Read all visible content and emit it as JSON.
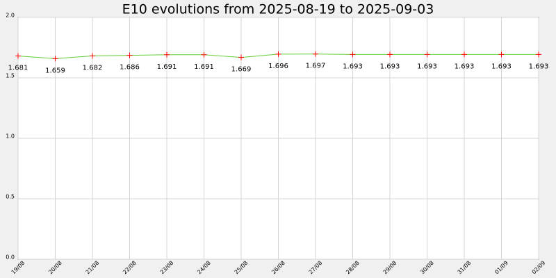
{
  "chart_data": {
    "type": "line",
    "title": "E10 evolutions from 2025-08-19 to 2025-09-03",
    "categories": [
      "19/08",
      "20/08",
      "21/08",
      "22/08",
      "23/08",
      "24/08",
      "25/08",
      "26/08",
      "27/08",
      "28/08",
      "29/08",
      "30/08",
      "31/08",
      "01/09",
      "02/09"
    ],
    "series": [
      {
        "name": "E10",
        "color": "#66cc33",
        "marker_color": "#ff0000",
        "values": [
          1.681,
          1.659,
          1.682,
          1.686,
          1.691,
          1.691,
          1.669,
          1.696,
          1.697,
          1.693,
          1.693,
          1.693,
          1.693,
          1.693,
          1.693
        ]
      }
    ],
    "ylim": [
      0,
      2
    ],
    "yticks": [
      {
        "value": 0,
        "label": "0.0"
      },
      0.5,
      {
        "value": 1,
        "label": "1.0"
      },
      1.5,
      {
        "value": 2,
        "label": "2.0"
      }
    ],
    "grid": true
  }
}
